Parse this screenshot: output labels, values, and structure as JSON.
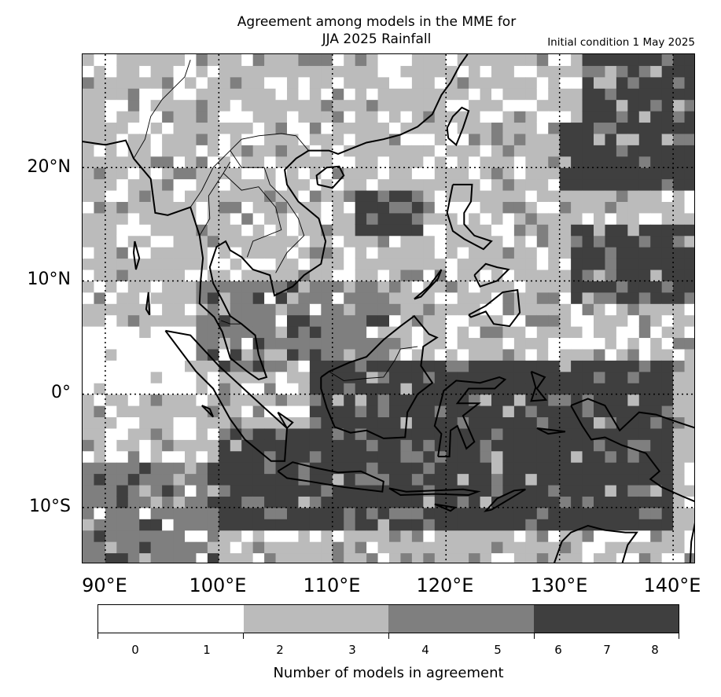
{
  "title_line1": "Agreement among models in the MME for",
  "title_line2": "JJA 2025  Rainfall",
  "subtitle": "Initial condition 1 May 2025",
  "lat_labels": [
    "20°N",
    "10°N",
    "0°",
    "10°S"
  ],
  "lon_labels": [
    "90°E",
    "100°E",
    "110°E",
    "120°E",
    "130°E",
    "140°E"
  ],
  "colorbar": {
    "label": "Number of models in agreement",
    "ticks": [
      "0",
      "1",
      "2",
      "3",
      "4",
      "5",
      "6",
      "7",
      "8"
    ],
    "colors": [
      "#ffffff",
      "#bbbbbb",
      "#7f7f7f",
      "#3f3f3f"
    ]
  },
  "map": {
    "lon_range": [
      88,
      142
    ],
    "lat_range": [
      -15,
      30
    ],
    "gridlines": "dotted, every 10°",
    "shading_colors": [
      "#ffffff",
      "#bbbbbb",
      "#7f7f7f",
      "#3f3f3f"
    ],
    "region": "Southeast Asia and Maritime Continent"
  }
}
